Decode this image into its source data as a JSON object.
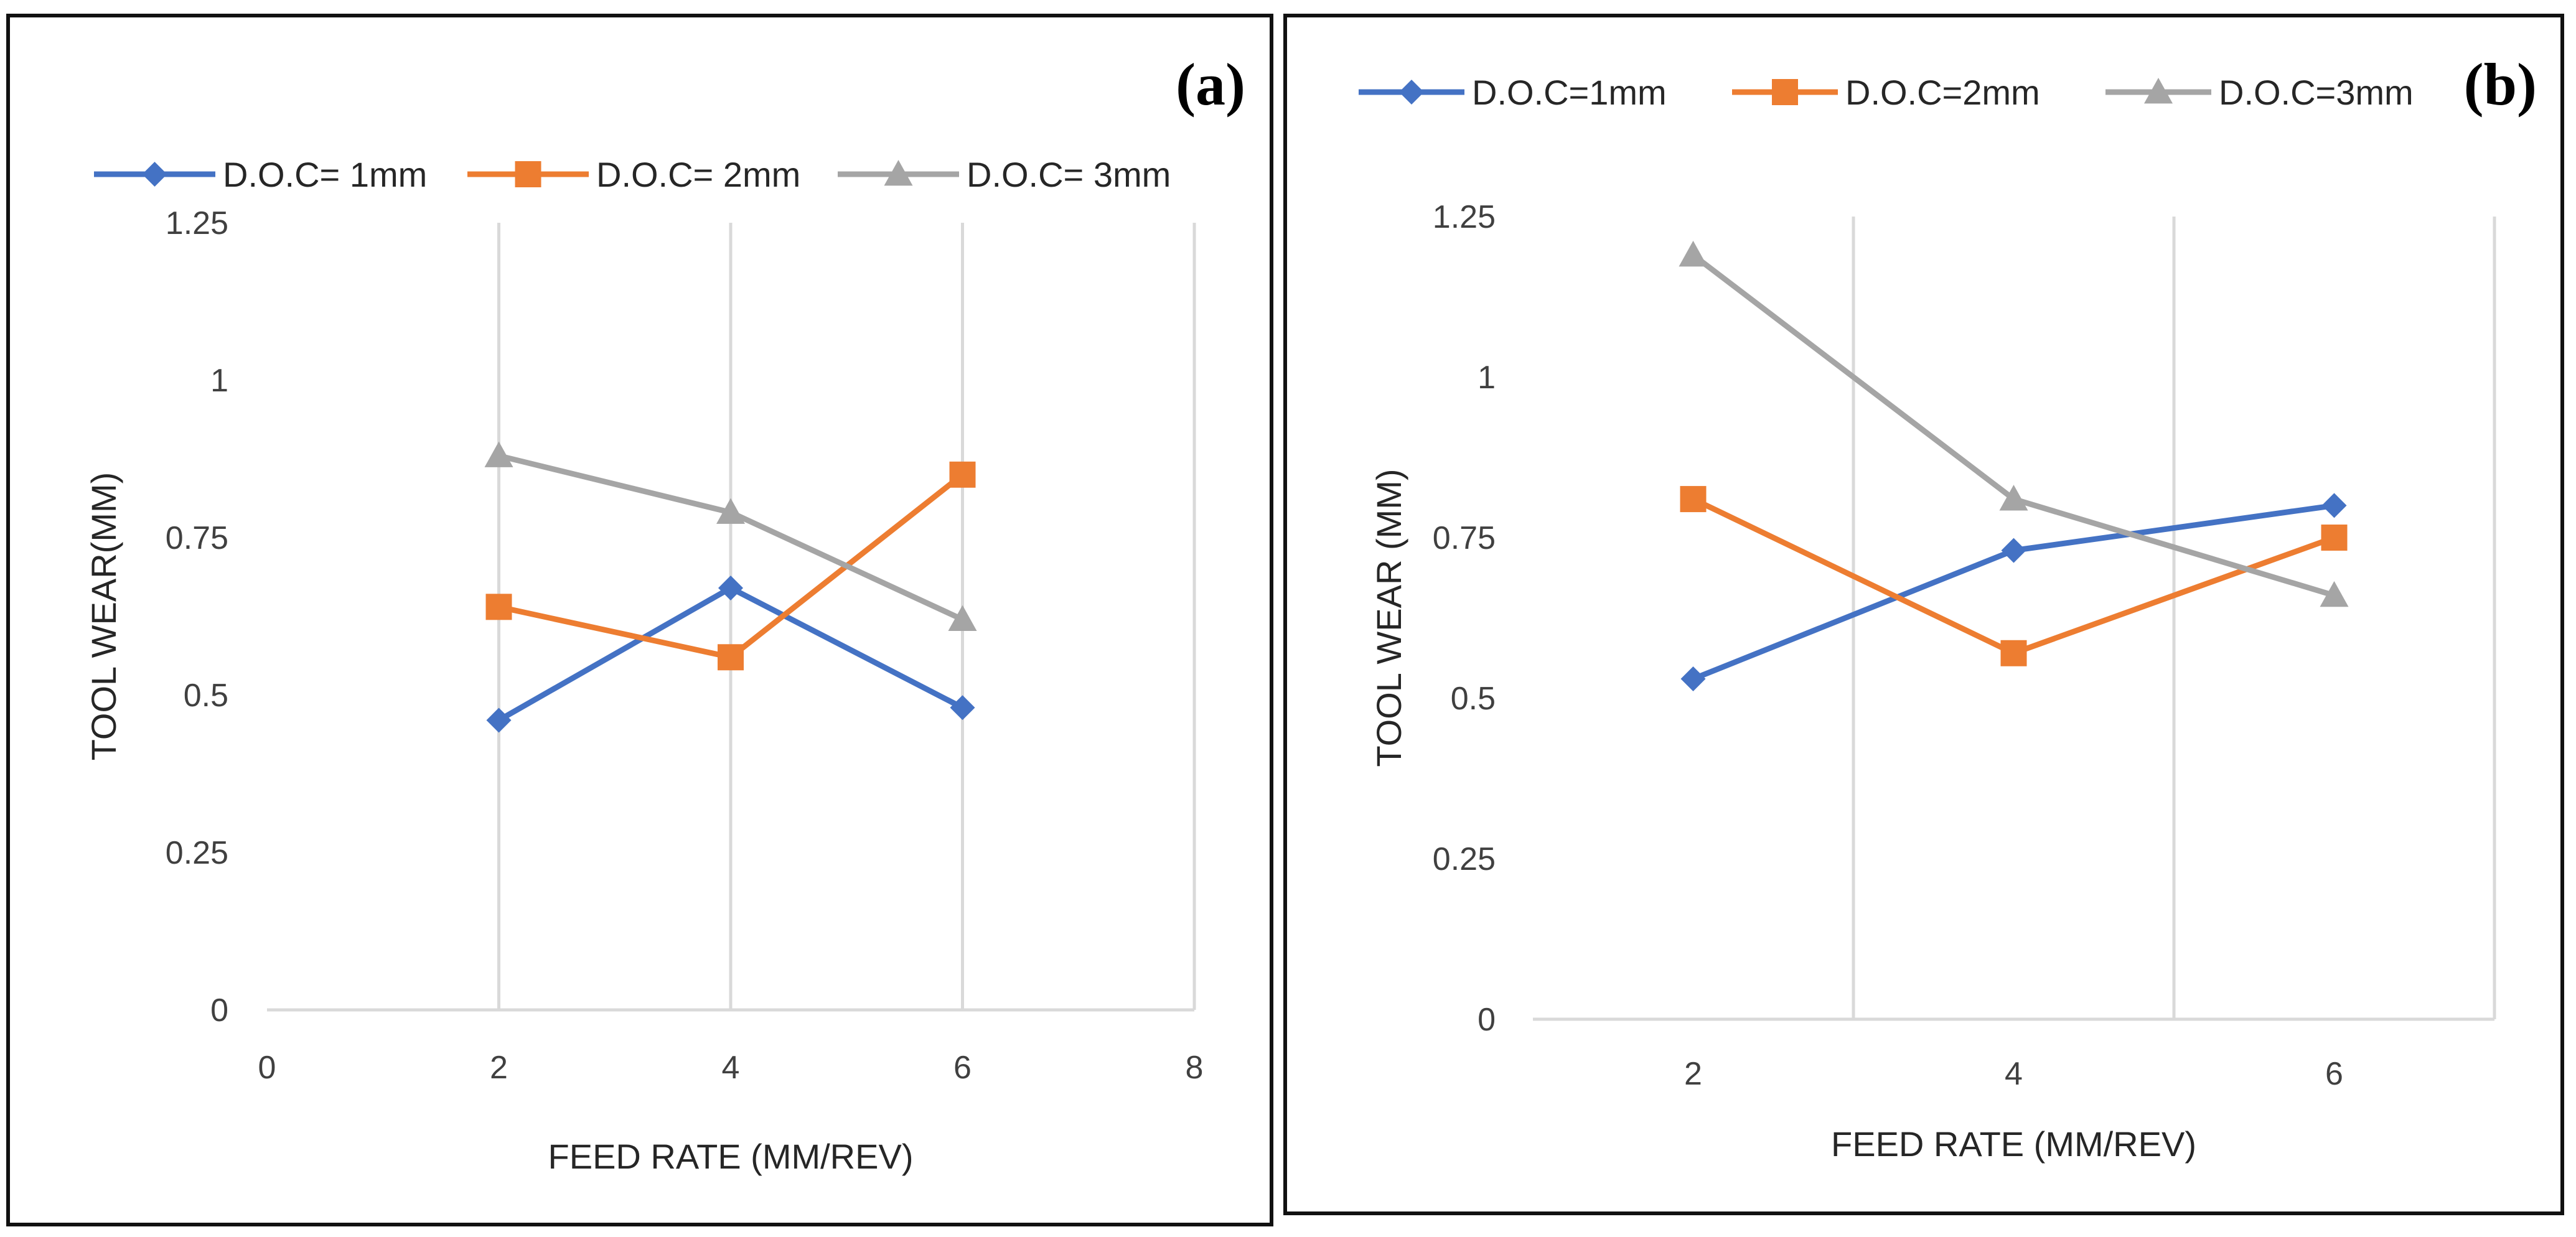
{
  "chart_data": [
    {
      "type": "scatter",
      "panel_label": "(a)",
      "title": "",
      "xlabel": "FEED RATE (MM/REV)",
      "ylabel": "TOOL WEAR(MM)",
      "xlim": [
        0,
        8
      ],
      "ylim": [
        0,
        1.25
      ],
      "x_ticks": [
        0,
        2,
        4,
        6,
        8
      ],
      "x_tick_labels": [
        "0",
        "2",
        "4",
        "6",
        "8"
      ],
      "y_ticks": [
        0,
        0.25,
        0.5,
        0.75,
        1,
        1.25
      ],
      "y_tick_labels": [
        "0",
        "0.25",
        "0.5",
        "0.75",
        "1",
        "1.25"
      ],
      "grid": "vertical",
      "legend_position": "top",
      "x": [
        2,
        4,
        6
      ],
      "series": [
        {
          "name": "D.O.C= 1mm",
          "values": [
            0.46,
            0.67,
            0.48
          ],
          "color": "#4472C4",
          "marker": "diamond"
        },
        {
          "name": "D.O.C= 2mm",
          "values": [
            0.64,
            0.56,
            0.85
          ],
          "color": "#ED7D31",
          "marker": "square"
        },
        {
          "name": "D.O.C= 3mm",
          "values": [
            0.88,
            0.79,
            0.62
          ],
          "color": "#A5A5A5",
          "marker": "triangle"
        }
      ]
    },
    {
      "type": "line",
      "panel_label": "(b)",
      "title": "",
      "xlabel": "FEED RATE (MM/REV)",
      "ylabel": "TOOL WEAR (MM)",
      "categories": [
        "2",
        "4",
        "6"
      ],
      "ylim": [
        0,
        1.25
      ],
      "y_ticks": [
        0,
        0.25,
        0.5,
        0.75,
        1,
        1.25
      ],
      "y_tick_labels": [
        "0",
        "0.25",
        "0.5",
        "0.75",
        "1",
        "1.25"
      ],
      "grid": "vertical",
      "legend_position": "top",
      "series": [
        {
          "name": "D.O.C=1mm",
          "values": [
            0.53,
            0.73,
            0.8
          ],
          "color": "#4472C4",
          "marker": "diamond"
        },
        {
          "name": "D.O.C=2mm",
          "values": [
            0.81,
            0.57,
            0.75
          ],
          "color": "#ED7D31",
          "marker": "square"
        },
        {
          "name": "D.O.C=3mm",
          "values": [
            1.19,
            0.81,
            0.66
          ],
          "color": "#A5A5A5",
          "marker": "triangle"
        }
      ]
    }
  ]
}
